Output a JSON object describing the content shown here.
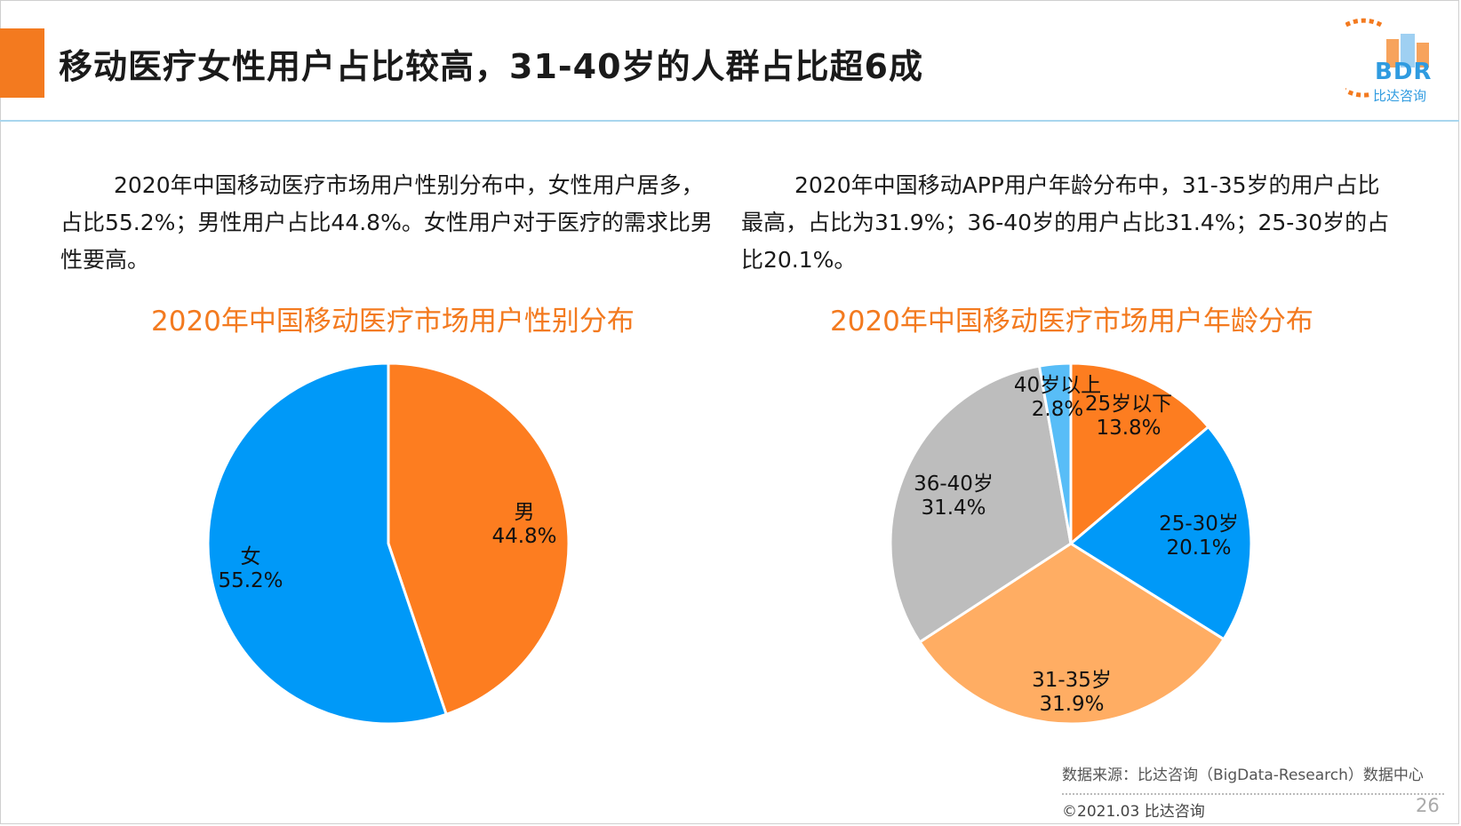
{
  "title": "移动医疗女性用户占比较高，31-40岁的人群占比超6成",
  "logo": {
    "text": "BDR",
    "subtitle": "比达咨询",
    "colors": {
      "orange": "#f37a1f",
      "blue": "#2f9be0"
    }
  },
  "paragraphs": {
    "left": "2020年中国移动医疗市场用户性别分布中，女性用户居多，占比55.2%；男性用户占比44.8%。女性用户对于医疗的需求比男性要高。",
    "right": "2020年中国移动APP用户年龄分布中，31-35岁的用户占比最高，占比为31.9%；36-40岁的用户占比31.4%；25-30岁的占比20.1%。"
  },
  "chart_data": [
    {
      "type": "pie",
      "title": "2020年中国移动医疗市场用户性别分布",
      "categories": [
        "男",
        "女"
      ],
      "values": [
        44.8,
        55.2
      ],
      "value_labels": [
        "44.8%",
        "55.2%"
      ],
      "colors": [
        "#fd7d20",
        "#0099f8"
      ],
      "start_angle": "12 o'clock, clockwise"
    },
    {
      "type": "pie",
      "title": "2020年中国移动医疗市场用户年龄分布",
      "categories": [
        "25岁以下",
        "25-30岁",
        "31-35岁",
        "36-40岁",
        "40岁以上"
      ],
      "values": [
        13.8,
        20.1,
        31.9,
        31.4,
        2.8
      ],
      "value_labels": [
        "13.8%",
        "20.1%",
        "31.9%",
        "31.4%",
        "2.8%"
      ],
      "colors": [
        "#fd7d20",
        "#0099f8",
        "#ffad63",
        "#bdbdbd",
        "#58bdf7"
      ],
      "start_angle": "12 o'clock, clockwise"
    }
  ],
  "footer": {
    "source": "数据来源：比达咨询（BigData-Research）数据中心",
    "copyright": "©2021.03 比达咨询",
    "page": "26"
  }
}
